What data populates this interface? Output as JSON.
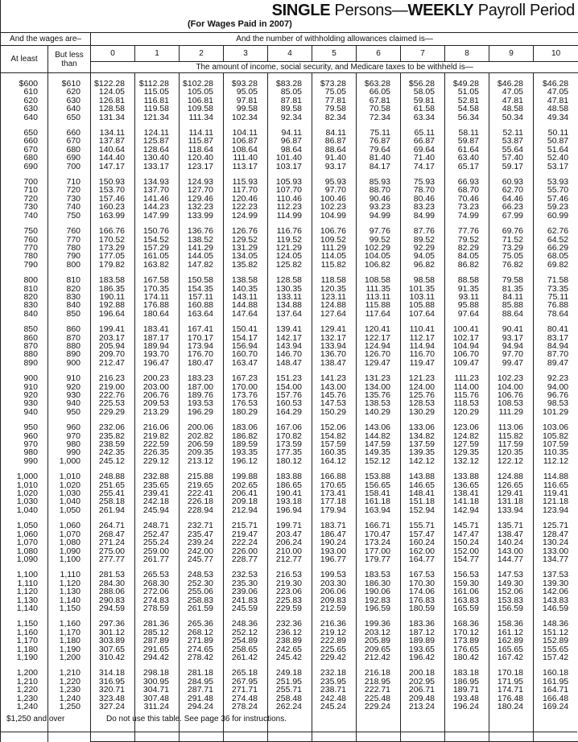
{
  "title": {
    "bold1": "SINGLE",
    "mid": " Persons—",
    "bold2": "WEEKLY",
    "end": " Payroll Period"
  },
  "subtitle": "(For Wages Paid in 2007)",
  "header": {
    "wages_group": "And the wages are–",
    "allowances_group": "And the number of withholding allowances claimed is—",
    "at_least": "At least",
    "but_less_than": "But less than",
    "allowances": [
      "0",
      "1",
      "2",
      "3",
      "4",
      "5",
      "6",
      "7",
      "8",
      "9",
      "10"
    ],
    "amount_note": "The amount of income, social security, and Medicare taxes to be withheld is—"
  },
  "rows": [
    [
      "$600",
      "$610",
      "$122.28",
      "$112.28",
      "$102.28",
      "$93.28",
      "$83.28",
      "$73.28",
      "$63.28",
      "$56.28",
      "$49.28",
      "$46.28",
      "$46.28"
    ],
    [
      "610",
      "620",
      "124.05",
      "115.05",
      "105.05",
      "95.05",
      "85.05",
      "75.05",
      "66.05",
      "58.05",
      "51.05",
      "47.05",
      "47.05"
    ],
    [
      "620",
      "630",
      "126.81",
      "116.81",
      "106.81",
      "97.81",
      "87.81",
      "77.81",
      "67.81",
      "59.81",
      "52.81",
      "47.81",
      "47.81"
    ],
    [
      "630",
      "640",
      "128.58",
      "119.58",
      "109.58",
      "99.58",
      "89.58",
      "79.58",
      "70.58",
      "61.58",
      "54.58",
      "48.58",
      "48.58"
    ],
    [
      "640",
      "650",
      "131.34",
      "121.34",
      "111.34",
      "102.34",
      "92.34",
      "82.34",
      "72.34",
      "63.34",
      "56.34",
      "50.34",
      "49.34"
    ],
    [
      "650",
      "660",
      "134.11",
      "124.11",
      "114.11",
      "104.11",
      "94.11",
      "84.11",
      "75.11",
      "65.11",
      "58.11",
      "52.11",
      "50.11"
    ],
    [
      "660",
      "670",
      "137.87",
      "125.87",
      "115.87",
      "106.87",
      "96.87",
      "86.87",
      "76.87",
      "66.87",
      "59.87",
      "53.87",
      "50.87"
    ],
    [
      "670",
      "680",
      "140.64",
      "128.64",
      "118.64",
      "108.64",
      "98.64",
      "88.64",
      "79.64",
      "69.64",
      "61.64",
      "55.64",
      "51.64"
    ],
    [
      "680",
      "690",
      "144.40",
      "130.40",
      "120.40",
      "111.40",
      "101.40",
      "91.40",
      "81.40",
      "71.40",
      "63.40",
      "57.40",
      "52.40"
    ],
    [
      "690",
      "700",
      "147.17",
      "133.17",
      "123.17",
      "113.17",
      "103.17",
      "93.17",
      "84.17",
      "74.17",
      "65.17",
      "59.17",
      "53.17"
    ],
    [
      "700",
      "710",
      "150.93",
      "134.93",
      "124.93",
      "115.93",
      "105.93",
      "95.93",
      "85.93",
      "75.93",
      "66.93",
      "60.93",
      "53.93"
    ],
    [
      "710",
      "720",
      "153.70",
      "137.70",
      "127.70",
      "117.70",
      "107.70",
      "97.70",
      "88.70",
      "78.70",
      "68.70",
      "62.70",
      "55.70"
    ],
    [
      "720",
      "730",
      "157.46",
      "141.46",
      "129.46",
      "120.46",
      "110.46",
      "100.46",
      "90.46",
      "80.46",
      "70.46",
      "64.46",
      "57.46"
    ],
    [
      "730",
      "740",
      "160.23",
      "144.23",
      "132.23",
      "122.23",
      "112.23",
      "102.23",
      "93.23",
      "83.23",
      "73.23",
      "66.23",
      "59.23"
    ],
    [
      "740",
      "750",
      "163.99",
      "147.99",
      "133.99",
      "124.99",
      "114.99",
      "104.99",
      "94.99",
      "84.99",
      "74.99",
      "67.99",
      "60.99"
    ],
    [
      "750",
      "760",
      "166.76",
      "150.76",
      "136.76",
      "126.76",
      "116.76",
      "106.76",
      "97.76",
      "87.76",
      "77.76",
      "69.76",
      "62.76"
    ],
    [
      "760",
      "770",
      "170.52",
      "154.52",
      "138.52",
      "129.52",
      "119.52",
      "109.52",
      "99.52",
      "89.52",
      "79.52",
      "71.52",
      "64.52"
    ],
    [
      "770",
      "780",
      "173.29",
      "157.29",
      "141.29",
      "131.29",
      "121.29",
      "111.29",
      "102.29",
      "92.29",
      "82.29",
      "73.29",
      "66.29"
    ],
    [
      "780",
      "790",
      "177.05",
      "161.05",
      "144.05",
      "134.05",
      "124.05",
      "114.05",
      "104.05",
      "94.05",
      "84.05",
      "75.05",
      "68.05"
    ],
    [
      "790",
      "800",
      "179.82",
      "163.82",
      "147.82",
      "135.82",
      "125.82",
      "115.82",
      "106.82",
      "96.82",
      "86.82",
      "76.82",
      "69.82"
    ],
    [
      "800",
      "810",
      "183.58",
      "167.58",
      "150.58",
      "138.58",
      "128.58",
      "118.58",
      "108.58",
      "98.58",
      "88.58",
      "79.58",
      "71.58"
    ],
    [
      "810",
      "820",
      "186.35",
      "170.35",
      "154.35",
      "140.35",
      "130.35",
      "120.35",
      "111.35",
      "101.35",
      "91.35",
      "81.35",
      "73.35"
    ],
    [
      "820",
      "830",
      "190.11",
      "174.11",
      "157.11",
      "143.11",
      "133.11",
      "123.11",
      "113.11",
      "103.11",
      "93.11",
      "84.11",
      "75.11"
    ],
    [
      "830",
      "840",
      "192.88",
      "176.88",
      "160.88",
      "144.88",
      "134.88",
      "124.88",
      "115.88",
      "105.88",
      "95.88",
      "85.88",
      "76.88"
    ],
    [
      "840",
      "850",
      "196.64",
      "180.64",
      "163.64",
      "147.64",
      "137.64",
      "127.64",
      "117.64",
      "107.64",
      "97.64",
      "88.64",
      "78.64"
    ],
    [
      "850",
      "860",
      "199.41",
      "183.41",
      "167.41",
      "150.41",
      "139.41",
      "129.41",
      "120.41",
      "110.41",
      "100.41",
      "90.41",
      "80.41"
    ],
    [
      "860",
      "870",
      "203.17",
      "187.17",
      "170.17",
      "154.17",
      "142.17",
      "132.17",
      "122.17",
      "112.17",
      "102.17",
      "93.17",
      "83.17"
    ],
    [
      "870",
      "880",
      "205.94",
      "189.94",
      "173.94",
      "156.94",
      "143.94",
      "133.94",
      "124.94",
      "114.94",
      "104.94",
      "94.94",
      "84.94"
    ],
    [
      "880",
      "890",
      "209.70",
      "193.70",
      "176.70",
      "160.70",
      "146.70",
      "136.70",
      "126.70",
      "116.70",
      "106.70",
      "97.70",
      "87.70"
    ],
    [
      "890",
      "900",
      "212.47",
      "196.47",
      "180.47",
      "163.47",
      "148.47",
      "138.47",
      "129.47",
      "119.47",
      "109.47",
      "99.47",
      "89.47"
    ],
    [
      "900",
      "910",
      "216.23",
      "200.23",
      "183.23",
      "167.23",
      "151.23",
      "141.23",
      "131.23",
      "121.23",
      "111.23",
      "102.23",
      "92.23"
    ],
    [
      "910",
      "920",
      "219.00",
      "203.00",
      "187.00",
      "170.00",
      "154.00",
      "143.00",
      "134.00",
      "124.00",
      "114.00",
      "104.00",
      "94.00"
    ],
    [
      "920",
      "930",
      "222.76",
      "206.76",
      "189.76",
      "173.76",
      "157.76",
      "145.76",
      "135.76",
      "125.76",
      "115.76",
      "106.76",
      "96.76"
    ],
    [
      "930",
      "940",
      "225.53",
      "209.53",
      "193.53",
      "176.53",
      "160.53",
      "147.53",
      "138.53",
      "128.53",
      "118.53",
      "108.53",
      "98.53"
    ],
    [
      "940",
      "950",
      "229.29",
      "213.29",
      "196.29",
      "180.29",
      "164.29",
      "150.29",
      "140.29",
      "130.29",
      "120.29",
      "111.29",
      "101.29"
    ],
    [
      "950",
      "960",
      "232.06",
      "216.06",
      "200.06",
      "183.06",
      "167.06",
      "152.06",
      "143.06",
      "133.06",
      "123.06",
      "113.06",
      "103.06"
    ],
    [
      "960",
      "970",
      "235.82",
      "219.82",
      "202.82",
      "186.82",
      "170.82",
      "154.82",
      "144.82",
      "134.82",
      "124.82",
      "115.82",
      "105.82"
    ],
    [
      "970",
      "980",
      "238.59",
      "222.59",
      "206.59",
      "189.59",
      "173.59",
      "157.59",
      "147.59",
      "137.59",
      "127.59",
      "117.59",
      "107.59"
    ],
    [
      "980",
      "990",
      "242.35",
      "226.35",
      "209.35",
      "193.35",
      "177.35",
      "160.35",
      "149.35",
      "139.35",
      "129.35",
      "120.35",
      "110.35"
    ],
    [
      "990",
      "1,000",
      "245.12",
      "229.12",
      "213.12",
      "196.12",
      "180.12",
      "164.12",
      "152.12",
      "142.12",
      "132.12",
      "122.12",
      "112.12"
    ],
    [
      "1,000",
      "1,010",
      "248.88",
      "232.88",
      "215.88",
      "199.88",
      "183.88",
      "166.88",
      "153.88",
      "143.88",
      "133.88",
      "124.88",
      "114.88"
    ],
    [
      "1,010",
      "1,020",
      "251.65",
      "235.65",
      "219.65",
      "202.65",
      "186.65",
      "170.65",
      "156.65",
      "146.65",
      "136.65",
      "126.65",
      "116.65"
    ],
    [
      "1,020",
      "1,030",
      "255.41",
      "239.41",
      "222.41",
      "206.41",
      "190.41",
      "173.41",
      "158.41",
      "148.41",
      "138.41",
      "129.41",
      "119.41"
    ],
    [
      "1,030",
      "1,040",
      "258.18",
      "242.18",
      "226.18",
      "209.18",
      "193.18",
      "177.18",
      "161.18",
      "151.18",
      "141.18",
      "131.18",
      "121.18"
    ],
    [
      "1,040",
      "1,050",
      "261.94",
      "245.94",
      "228.94",
      "212.94",
      "196.94",
      "179.94",
      "163.94",
      "152.94",
      "142.94",
      "133.94",
      "123.94"
    ],
    [
      "1,050",
      "1,060",
      "264.71",
      "248.71",
      "232.71",
      "215.71",
      "199.71",
      "183.71",
      "166.71",
      "155.71",
      "145.71",
      "135.71",
      "125.71"
    ],
    [
      "1,060",
      "1,070",
      "268.47",
      "252.47",
      "235.47",
      "219.47",
      "203.47",
      "186.47",
      "170.47",
      "157.47",
      "147.47",
      "138.47",
      "128.47"
    ],
    [
      "1,070",
      "1,080",
      "271.24",
      "255.24",
      "239.24",
      "222.24",
      "206.24",
      "190.24",
      "173.24",
      "160.24",
      "150.24",
      "140.24",
      "130.24"
    ],
    [
      "1,080",
      "1,090",
      "275.00",
      "259.00",
      "242.00",
      "226.00",
      "210.00",
      "193.00",
      "177.00",
      "162.00",
      "152.00",
      "143.00",
      "133.00"
    ],
    [
      "1,090",
      "1,100",
      "277.77",
      "261.77",
      "245.77",
      "228.77",
      "212.77",
      "196.77",
      "179.77",
      "164.77",
      "154.77",
      "144.77",
      "134.77"
    ],
    [
      "1,100",
      "1,110",
      "281.53",
      "265.53",
      "248.53",
      "232.53",
      "216.53",
      "199.53",
      "183.53",
      "167.53",
      "156.53",
      "147.53",
      "137.53"
    ],
    [
      "1,110",
      "1,120",
      "284.30",
      "268.30",
      "252.30",
      "235.30",
      "219.30",
      "203.30",
      "186.30",
      "170.30",
      "159.30",
      "149.30",
      "139.30"
    ],
    [
      "1,120",
      "1,130",
      "288.06",
      "272.06",
      "255.06",
      "239.06",
      "223.06",
      "206.06",
      "190.06",
      "174.06",
      "161.06",
      "152.06",
      "142.06"
    ],
    [
      "1,130",
      "1,140",
      "290.83",
      "274.83",
      "258.83",
      "241.83",
      "225.83",
      "209.83",
      "192.83",
      "176.83",
      "163.83",
      "153.83",
      "143.83"
    ],
    [
      "1,140",
      "1,150",
      "294.59",
      "278.59",
      "261.59",
      "245.59",
      "229.59",
      "212.59",
      "196.59",
      "180.59",
      "165.59",
      "156.59",
      "146.59"
    ],
    [
      "1,150",
      "1,160",
      "297.36",
      "281.36",
      "265.36",
      "248.36",
      "232.36",
      "216.36",
      "199.36",
      "183.36",
      "168.36",
      "158.36",
      "148.36"
    ],
    [
      "1,160",
      "1,170",
      "301.12",
      "285.12",
      "268.12",
      "252.12",
      "236.12",
      "219.12",
      "203.12",
      "187.12",
      "170.12",
      "161.12",
      "151.12"
    ],
    [
      "1,170",
      "1,180",
      "303.89",
      "287.89",
      "271.89",
      "254.89",
      "238.89",
      "222.89",
      "205.89",
      "189.89",
      "173.89",
      "162.89",
      "152.89"
    ],
    [
      "1,180",
      "1,190",
      "307.65",
      "291.65",
      "274.65",
      "258.65",
      "242.65",
      "225.65",
      "209.65",
      "193.65",
      "176.65",
      "165.65",
      "155.65"
    ],
    [
      "1,190",
      "1,200",
      "310.42",
      "294.42",
      "278.42",
      "261.42",
      "245.42",
      "229.42",
      "212.42",
      "196.42",
      "180.42",
      "167.42",
      "157.42"
    ],
    [
      "1,200",
      "1,210",
      "314.18",
      "298.18",
      "281.18",
      "265.18",
      "249.18",
      "232.18",
      "216.18",
      "200.18",
      "183.18",
      "170.18",
      "160.18"
    ],
    [
      "1,210",
      "1,220",
      "316.95",
      "300.95",
      "284.95",
      "267.95",
      "251.95",
      "235.95",
      "218.95",
      "202.95",
      "186.95",
      "171.95",
      "161.95"
    ],
    [
      "1,220",
      "1,230",
      "320.71",
      "304.71",
      "287.71",
      "271.71",
      "255.71",
      "238.71",
      "222.71",
      "206.71",
      "189.71",
      "174.71",
      "164.71"
    ],
    [
      "1,230",
      "1,240",
      "323.48",
      "307.48",
      "291.48",
      "274.48",
      "258.48",
      "242.48",
      "225.48",
      "209.48",
      "193.48",
      "176.48",
      "166.48"
    ],
    [
      "1,240",
      "1,250",
      "327.24",
      "311.24",
      "294.24",
      "278.24",
      "262.24",
      "245.24",
      "229.24",
      "213.24",
      "196.24",
      "180.24",
      "169.24"
    ]
  ],
  "footer": {
    "range": "$1,250 and over",
    "note": "Do not use this table. See page 36 for instructions."
  }
}
